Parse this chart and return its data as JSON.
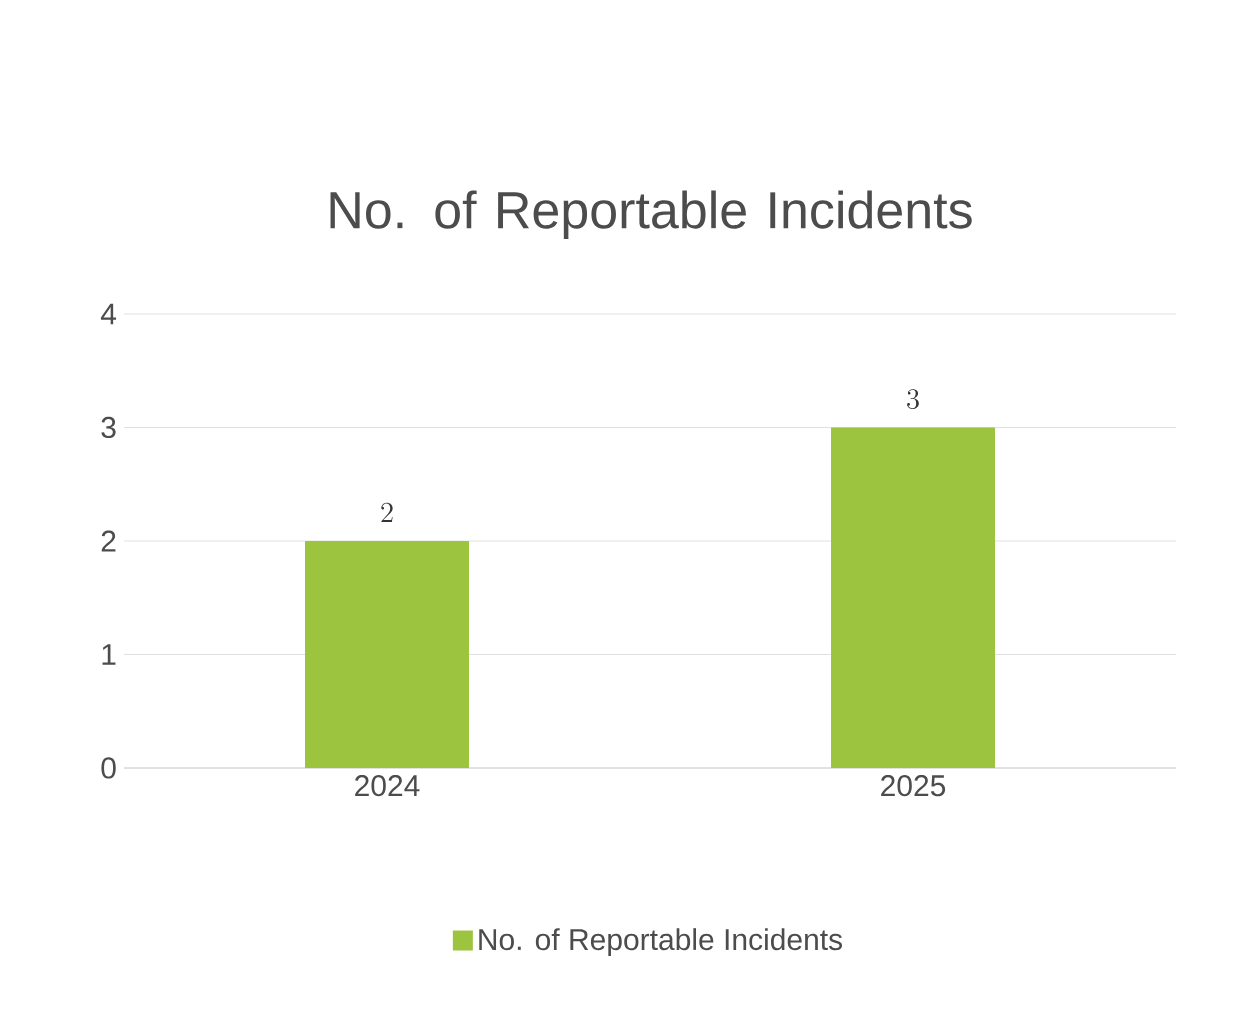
{
  "chart_data": {
    "type": "bar",
    "title": "No. of Reportable Incidents",
    "categories": [
      "2024",
      "2025"
    ],
    "series": [
      {
        "name": "No. of Reportable Incidents",
        "color": "#9dc43f",
        "values": [
          2,
          3
        ]
      }
    ],
    "ylim": [
      0,
      4
    ],
    "yticks": [
      0,
      1,
      2,
      3,
      4
    ],
    "grid": "y",
    "legend": "bottom",
    "data_labels": true
  }
}
